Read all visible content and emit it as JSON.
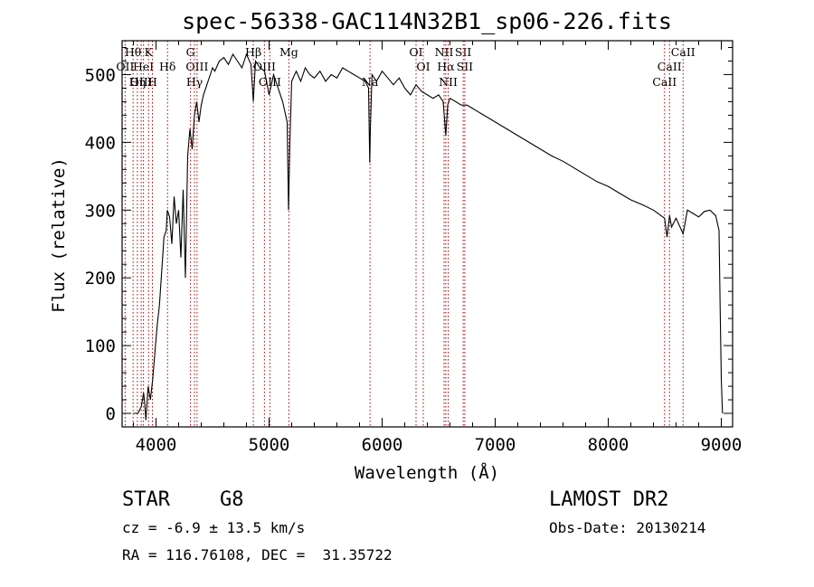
{
  "chart_data": {
    "type": "line",
    "title": "spec-56338-GAC114N32B1_sp06-226.fits",
    "xlabel": "Wavelength (Å)",
    "ylabel": "Flux (relative)",
    "xlim": [
      3700,
      9100
    ],
    "ylim": [
      -20,
      550
    ],
    "xticks": [
      4000,
      5000,
      6000,
      7000,
      8000,
      9000
    ],
    "yticks": [
      0,
      100,
      200,
      300,
      400,
      500
    ],
    "grid": false,
    "spectrum": {
      "name": "flux",
      "x": [
        3800,
        3840,
        3870,
        3890,
        3900,
        3910,
        3930,
        3950,
        3970,
        3990,
        4010,
        4030,
        4050,
        4070,
        4090,
        4100,
        4120,
        4140,
        4160,
        4180,
        4200,
        4220,
        4240,
        4260,
        4280,
        4300,
        4320,
        4340,
        4360,
        4380,
        4400,
        4420,
        4440,
        4460,
        4480,
        4500,
        4520,
        4560,
        4600,
        4640,
        4680,
        4720,
        4760,
        4800,
        4840,
        4861,
        4880,
        4920,
        4960,
        5000,
        5040,
        5080,
        5120,
        5160,
        5172,
        5184,
        5200,
        5240,
        5280,
        5320,
        5360,
        5400,
        5450,
        5500,
        5550,
        5600,
        5650,
        5700,
        5750,
        5800,
        5850,
        5880,
        5890,
        5896,
        5910,
        5950,
        6000,
        6050,
        6100,
        6150,
        6200,
        6250,
        6300,
        6350,
        6400,
        6450,
        6500,
        6540,
        6563,
        6580,
        6600,
        6650,
        6700,
        6750,
        6800,
        6850,
        6900,
        6950,
        7000,
        7100,
        7200,
        7300,
        7400,
        7500,
        7600,
        7700,
        7800,
        7900,
        8000,
        8100,
        8200,
        8300,
        8400,
        8498,
        8520,
        8542,
        8560,
        8600,
        8662,
        8700,
        8750,
        8800,
        8850,
        8900,
        8950,
        8980,
        8990,
        9000,
        9010
      ],
      "y": [
        0,
        0,
        10,
        30,
        15,
        -10,
        40,
        20,
        50,
        90,
        130,
        160,
        210,
        260,
        270,
        300,
        290,
        250,
        320,
        280,
        300,
        230,
        330,
        200,
        380,
        420,
        390,
        440,
        460,
        430,
        455,
        470,
        480,
        490,
        500,
        510,
        505,
        520,
        525,
        515,
        530,
        520,
        510,
        530,
        515,
        460,
        520,
        510,
        505,
        470,
        500,
        480,
        460,
        430,
        300,
        400,
        490,
        505,
        490,
        510,
        500,
        495,
        505,
        490,
        500,
        495,
        510,
        505,
        500,
        495,
        490,
        480,
        370,
        420,
        500,
        490,
        505,
        495,
        485,
        495,
        480,
        470,
        485,
        475,
        470,
        465,
        470,
        460,
        410,
        455,
        465,
        460,
        455,
        455,
        450,
        445,
        440,
        435,
        430,
        420,
        410,
        400,
        390,
        380,
        372,
        362,
        352,
        342,
        335,
        325,
        315,
        308,
        300,
        288,
        260,
        292,
        275,
        288,
        265,
        300,
        295,
        290,
        298,
        300,
        292,
        270,
        150,
        50,
        0
      ]
    },
    "lines": [
      {
        "name": "Hθ",
        "x": 3797,
        "row": 1
      },
      {
        "name": "OII",
        "x": 3727,
        "row": 2
      },
      {
        "name": "OIII",
        "x": 3869,
        "row": 3
      },
      {
        "name": "K",
        "x": 3934,
        "row": 1
      },
      {
        "name": "HeI",
        "x": 3889,
        "row": 2
      },
      {
        "name": "Hη",
        "x": 3835,
        "row": 3
      },
      {
        "name": "H",
        "x": 3968,
        "row": 3
      },
      {
        "name": "Hδ",
        "x": 4102,
        "row": 2
      },
      {
        "name": "G",
        "x": 4305,
        "row": 1
      },
      {
        "name": "OIII",
        "x": 4363,
        "row": 2
      },
      {
        "name": "Hγ",
        "x": 4340,
        "row": 3
      },
      {
        "name": "Hβ",
        "x": 4861,
        "row": 1
      },
      {
        "name": "OIII",
        "x": 4959,
        "row": 2
      },
      {
        "name": "OIII",
        "x": 5007,
        "row": 3
      },
      {
        "name": "Mg",
        "x": 5175,
        "row": 1
      },
      {
        "name": "Na",
        "x": 5893,
        "row": 3
      },
      {
        "name": "OI",
        "x": 6300,
        "row": 1
      },
      {
        "name": "OI",
        "x": 6364,
        "row": 2
      },
      {
        "name": "NII",
        "x": 6548,
        "row": 1
      },
      {
        "name": "SII",
        "x": 6717,
        "row": 1
      },
      {
        "name": "Hα",
        "x": 6563,
        "row": 2
      },
      {
        "name": "SII",
        "x": 6731,
        "row": 2
      },
      {
        "name": "NII",
        "x": 6584,
        "row": 3
      },
      {
        "name": "CaII",
        "x": 8662,
        "row": 1
      },
      {
        "name": "CaII",
        "x": 8542,
        "row": 2
      },
      {
        "name": "CaII",
        "x": 8498,
        "row": 3
      }
    ]
  },
  "info": {
    "class_label": "STAR",
    "subclass": "G8",
    "survey": "LAMOST DR2",
    "cz": "cz = -6.9 ± 13.5 km/s",
    "obs_date": "Obs-Date: 20130214",
    "coords": "RA = 116.76108, DEC =  31.35722"
  },
  "colors": {
    "spectrum": "#000000",
    "marker_line": "#b00000",
    "axes": "#000000"
  }
}
